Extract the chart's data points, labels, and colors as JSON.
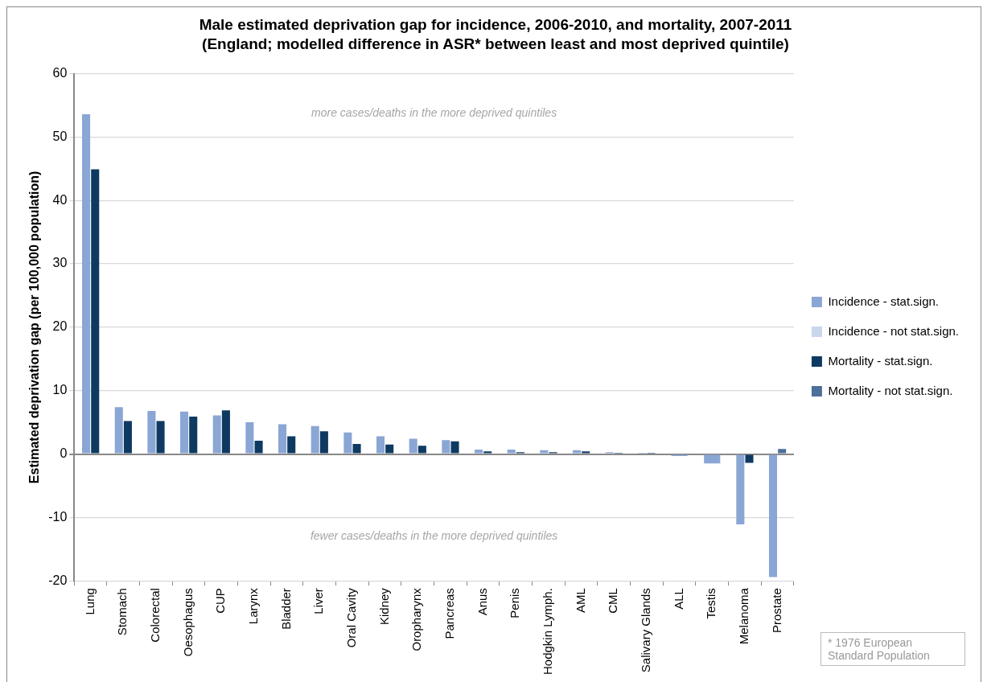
{
  "chart_data": {
    "type": "bar",
    "title": "Male estimated deprivation gap for incidence, 2006-2010, and mortality, 2007-2011",
    "subtitle": "(England; modelled difference in ASR* between least and most deprived quintile)",
    "ylabel": "Estimated deprivation gap (per 100,000 population)",
    "categories": [
      "Lung",
      "Stomach",
      "Colorectal",
      "Oesophagus",
      "CUP",
      "Larynx",
      "Bladder",
      "Liver",
      "Oral Cavity",
      "Kidney",
      "Oropharynx",
      "Pancreas",
      "Anus",
      "Penis",
      "Hodgkin Lymph.",
      "AML",
      "CML",
      "Salivary Glands",
      "ALL",
      "Testis",
      "Melanoma",
      "Prostate"
    ],
    "series": [
      {
        "name": "Incidence - stat.sign.",
        "color": "#8aa6d4",
        "values": [
          53.6,
          7.4,
          6.8,
          6.7,
          6.1,
          5.0,
          4.7,
          4.4,
          3.4,
          2.8,
          2.4,
          2.2,
          0.7,
          0.7,
          0.6,
          0.6,
          0.3,
          0.2,
          -0.3,
          -1.5,
          -11.1,
          -19.4
        ]
      },
      {
        "name": "Incidence - not stat.sign.",
        "color": "#c9d6ec",
        "values": [
          null,
          null,
          null,
          null,
          null,
          null,
          null,
          null,
          null,
          null,
          null,
          null,
          null,
          null,
          null,
          null,
          null,
          null,
          null,
          null,
          null,
          null
        ]
      },
      {
        "name": "Mortality - stat.sign.",
        "color": "#0e3a62",
        "values": [
          44.9,
          5.2,
          5.2,
          5.9,
          6.9,
          2.1,
          2.8,
          3.6,
          1.6,
          1.5,
          1.3,
          2.0,
          0.4,
          0.3,
          0.3,
          0.4,
          0.2,
          0.2,
          null,
          null,
          -1.4,
          null
        ]
      },
      {
        "name": "Mortality - not stat.sign.",
        "color": "#4d6f98",
        "values": [
          null,
          null,
          null,
          null,
          null,
          null,
          null,
          null,
          null,
          null,
          null,
          null,
          null,
          null,
          null,
          null,
          null,
          null,
          null,
          null,
          null,
          0.8
        ]
      }
    ],
    "ylim": [
      -20,
      60
    ],
    "yticks": [
      -20,
      -10,
      0,
      10,
      20,
      30,
      40,
      50,
      60
    ],
    "grid": "y",
    "legend": "right",
    "annotations": [
      "more cases/deaths in the more deprived quintiles",
      "fewer cases/deaths in the more deprived quintiles",
      "* 1976 European Standard Population"
    ]
  }
}
